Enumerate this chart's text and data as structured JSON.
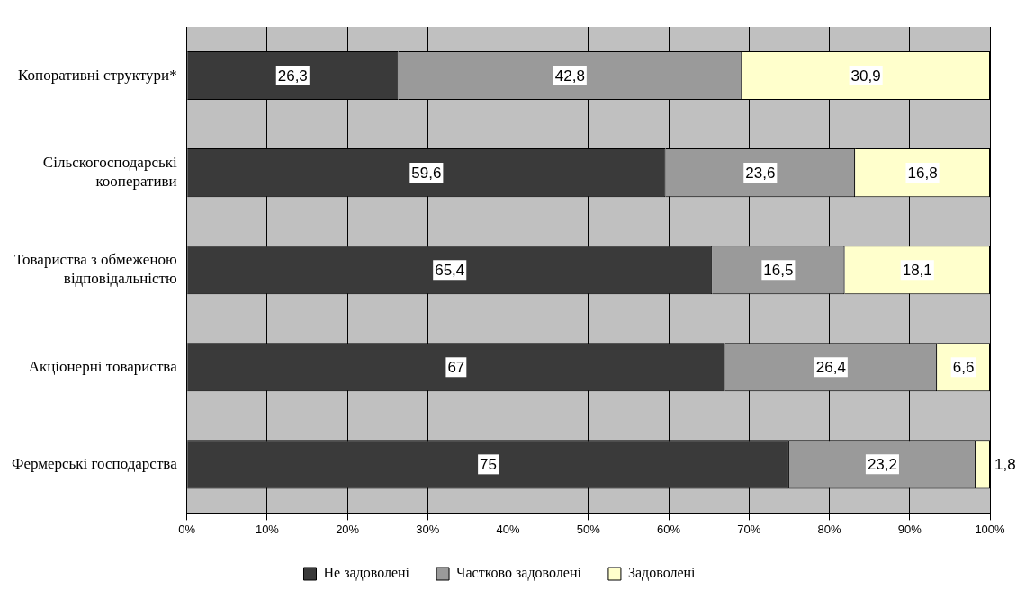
{
  "chart_data": {
    "type": "bar",
    "orientation": "horizontal",
    "stacked": true,
    "categories": [
      "Копоративні структури*",
      "Сільскогосподарські кооперативи",
      "Товариства з обмеженою відповідальністю",
      "Акціонерні товариства",
      "Фермерські господарства"
    ],
    "series": [
      {
        "name": "Не задоволені",
        "color": "#3a3a3a",
        "values": [
          26.3,
          59.6,
          65.4,
          67,
          75
        ],
        "value_labels": [
          "26,3",
          "59,6",
          "65,4",
          "67",
          "75"
        ]
      },
      {
        "name": "Частково задоволені",
        "color": "#9a9a9a",
        "values": [
          42.8,
          23.6,
          16.5,
          26.4,
          23.2
        ],
        "value_labels": [
          "42,8",
          "23,6",
          "16,5",
          "26,4",
          "23,2"
        ]
      },
      {
        "name": "Задоволені",
        "color": "#ffffcc",
        "values": [
          30.9,
          16.8,
          18.1,
          6.6,
          1.8
        ],
        "value_labels": [
          "30,9",
          "16,8",
          "18,1",
          "6,6",
          "1,8"
        ]
      }
    ],
    "xlim": [
      0,
      100
    ],
    "xticks": [
      {
        "value": 0,
        "label": "0%"
      },
      {
        "value": 10,
        "label": "10%"
      },
      {
        "value": 20,
        "label": "20%"
      },
      {
        "value": 30,
        "label": "30%"
      },
      {
        "value": 40,
        "label": "40%"
      },
      {
        "value": 50,
        "label": "50%"
      },
      {
        "value": 60,
        "label": "60%"
      },
      {
        "value": 70,
        "label": "70%"
      },
      {
        "value": 80,
        "label": "80%"
      },
      {
        "value": 90,
        "label": "90%"
      },
      {
        "value": 100,
        "label": "100%"
      }
    ],
    "grid": "x",
    "legend": "bottom"
  }
}
